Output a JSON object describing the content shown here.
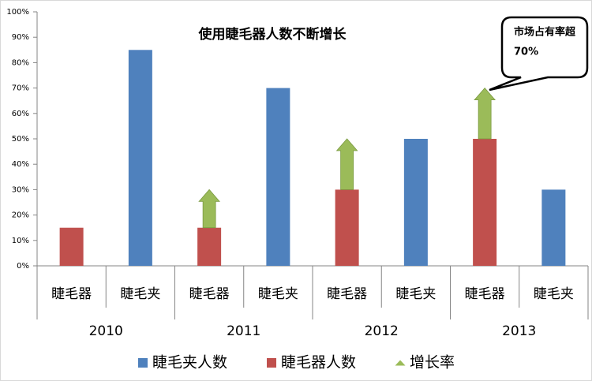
{
  "chart_data": {
    "type": "bar",
    "title": "使用睫毛器人数不断增长",
    "categories": [
      "睫毛器",
      "睫毛夹",
      "睫毛器",
      "睫毛夹",
      "睫毛器",
      "睫毛夹",
      "睫毛器",
      "睫毛夹"
    ],
    "groups": [
      "2010",
      "2011",
      "2012",
      "2013"
    ],
    "series": [
      {
        "name": "睫毛夹人数",
        "color": "#4f81bd",
        "values": [
          null,
          85,
          null,
          70,
          null,
          50,
          null,
          30
        ]
      },
      {
        "name": "睫毛器人数",
        "color": "#c0504d",
        "values": [
          15,
          null,
          15,
          null,
          30,
          null,
          50,
          null
        ]
      },
      {
        "name": "增长率",
        "color": "#9bbb59",
        "marker": "arrow",
        "stacked_on": "睫毛器人数",
        "values": [
          null,
          null,
          15,
          null,
          20,
          null,
          20,
          null
        ]
      }
    ],
    "ylim": [
      0,
      100
    ],
    "yticks": [
      {
        "value": 0,
        "label": "0%"
      },
      {
        "value": 10,
        "label": "10%"
      },
      {
        "value": 20,
        "label": "20%"
      },
      {
        "value": 30,
        "label": "30%"
      },
      {
        "value": 40,
        "label": "40%"
      },
      {
        "value": 50,
        "label": "50%"
      },
      {
        "value": 60,
        "label": "60%"
      },
      {
        "value": 70,
        "label": "70%"
      },
      {
        "value": 80,
        "label": "80%"
      },
      {
        "value": 90,
        "label": "90%"
      },
      {
        "value": 100,
        "label": "100%"
      }
    ],
    "grid": false,
    "legend": "bottom",
    "annotation": {
      "lines": [
        "市场占有率超",
        "70%"
      ]
    }
  }
}
